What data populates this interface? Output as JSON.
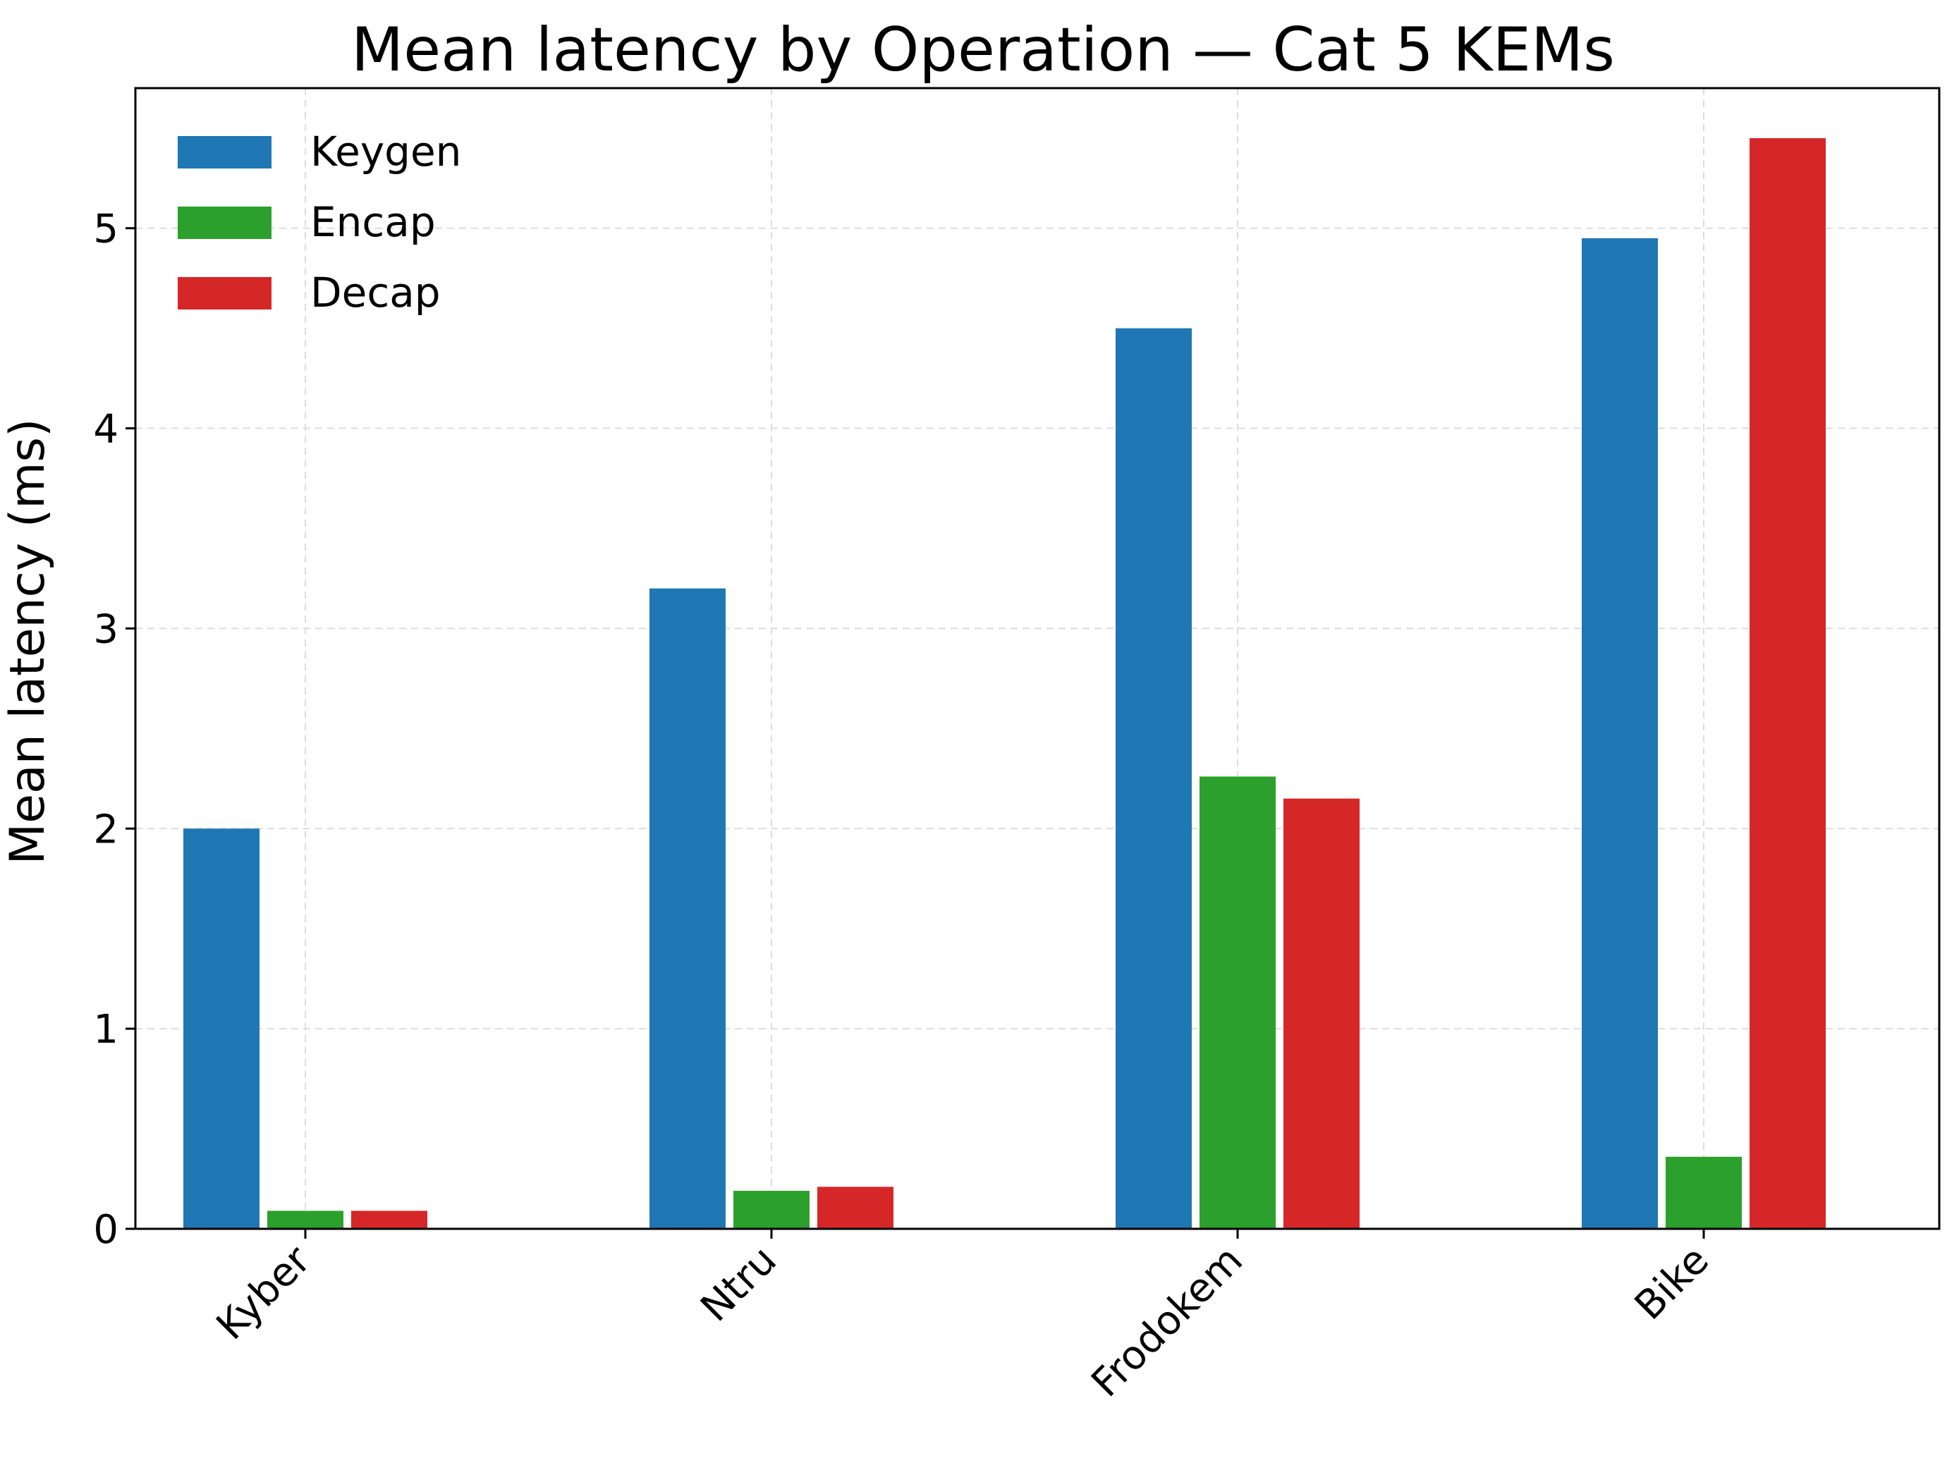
{
  "chart_data": {
    "type": "bar",
    "title": "Mean latency by Operation — Cat 5 KEMs",
    "xlabel": "",
    "ylabel": "Mean latency (ms)",
    "categories": [
      "Kyber",
      "Ntru",
      "Frodokem",
      "Bike"
    ],
    "series": [
      {
        "name": "Keygen",
        "color": "#1f77b4",
        "values": [
          2.0,
          3.2,
          4.5,
          4.95
        ]
      },
      {
        "name": "Encap",
        "color": "#2ca02c",
        "values": [
          0.09,
          0.19,
          2.26,
          0.36
        ]
      },
      {
        "name": "Decap",
        "color": "#d62728",
        "values": [
          0.09,
          0.21,
          2.15,
          5.45
        ]
      }
    ],
    "ylim": [
      0,
      5.7
    ],
    "yticks": [
      "0",
      "1",
      "2",
      "3",
      "4",
      "5"
    ],
    "grid": true,
    "legend_position": "top-left"
  }
}
